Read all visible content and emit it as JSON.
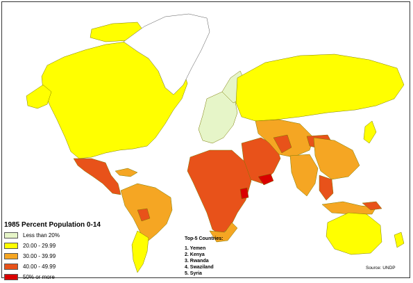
{
  "map": {
    "title": "1985 Percent Population 0-14",
    "legend": [
      {
        "label": "Less than 20%",
        "color": "#e6f5c8"
      },
      {
        "label": "20.00 - 29.99",
        "color": "#ffff00"
      },
      {
        "label": "30.00 - 39.99",
        "color": "#f5a623"
      },
      {
        "label": "40.00 - 49.99",
        "color": "#e8521a"
      },
      {
        "label": "50% or more",
        "color": "#d90000"
      }
    ],
    "top5_title": "Top-5 Countries:",
    "top5": [
      "1. Yemen",
      "2. Kenya",
      "3. Rwanda",
      "4. Swaziland",
      "5. Syria"
    ],
    "source": "Source: UNDP",
    "no_data_color": "#ffffff",
    "border_color": "#6b6b00"
  }
}
